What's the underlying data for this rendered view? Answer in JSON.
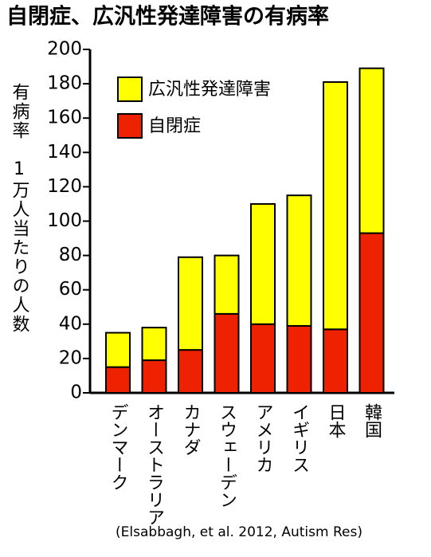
{
  "chart_data": {
    "type": "stacked_bar",
    "title": "自閉症、広汎性発達障害の有病率",
    "y_label": "有病率　1万人当たりの人数",
    "note": "(Elsabbagh, et al. 2012, Autism Res)",
    "categories": [
      "デンマーク",
      "オーストラリア",
      "カナダ",
      "スウェーデン",
      "アメリカ",
      "イギリス",
      "日本",
      "韓国"
    ],
    "series": [
      {
        "name": "自閉症",
        "color": "#ee2200",
        "values": [
          15,
          19,
          25,
          46,
          40,
          39,
          37,
          93
        ]
      },
      {
        "name": "広汎性発達障害",
        "color": "#ffff00",
        "values": [
          20,
          19,
          54,
          34,
          70,
          76,
          144,
          96
        ]
      }
    ],
    "ylim": [
      0,
      200
    ],
    "yticks": [
      0,
      20,
      40,
      60,
      80,
      100,
      120,
      140,
      160,
      180,
      200
    ],
    "legend": "upper left"
  }
}
